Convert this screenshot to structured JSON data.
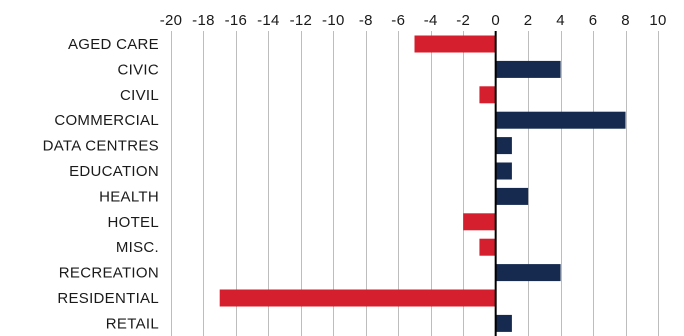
{
  "chart_data": {
    "type": "bar",
    "orientation": "horizontal",
    "categories": [
      "AGED CARE",
      "CIVIC",
      "CIVIL",
      "COMMERCIAL",
      "DATA CENTRES",
      "EDUCATION",
      "HEALTH",
      "HOTEL",
      "MISC.",
      "RECREATION",
      "RESIDENTIAL",
      "RETAIL"
    ],
    "values": [
      -5,
      4,
      -1,
      8,
      1,
      1,
      2,
      -2,
      -1,
      4,
      -17,
      1
    ],
    "xlim": [
      -20,
      10
    ],
    "xticks": [
      -20,
      -18,
      -16,
      -14,
      -12,
      -10,
      -8,
      -6,
      -4,
      -2,
      0,
      2,
      4,
      6,
      8,
      10
    ],
    "xtick_labels": [
      "-20",
      "-18",
      "-16",
      "-14",
      "-12",
      "-10",
      "-8",
      "-6",
      "-4",
      "-2",
      "0",
      "2",
      "4",
      "6",
      "8",
      "10"
    ],
    "x_axis_position": "top",
    "grid": "vertical",
    "title": "",
    "xlabel": "",
    "ylabel": "",
    "colors": {
      "positive": "#152a4e",
      "negative": "#d51f2e",
      "grid": "#bdbdbd",
      "zero_line": "#000000",
      "text": "#1a1a1a"
    }
  }
}
